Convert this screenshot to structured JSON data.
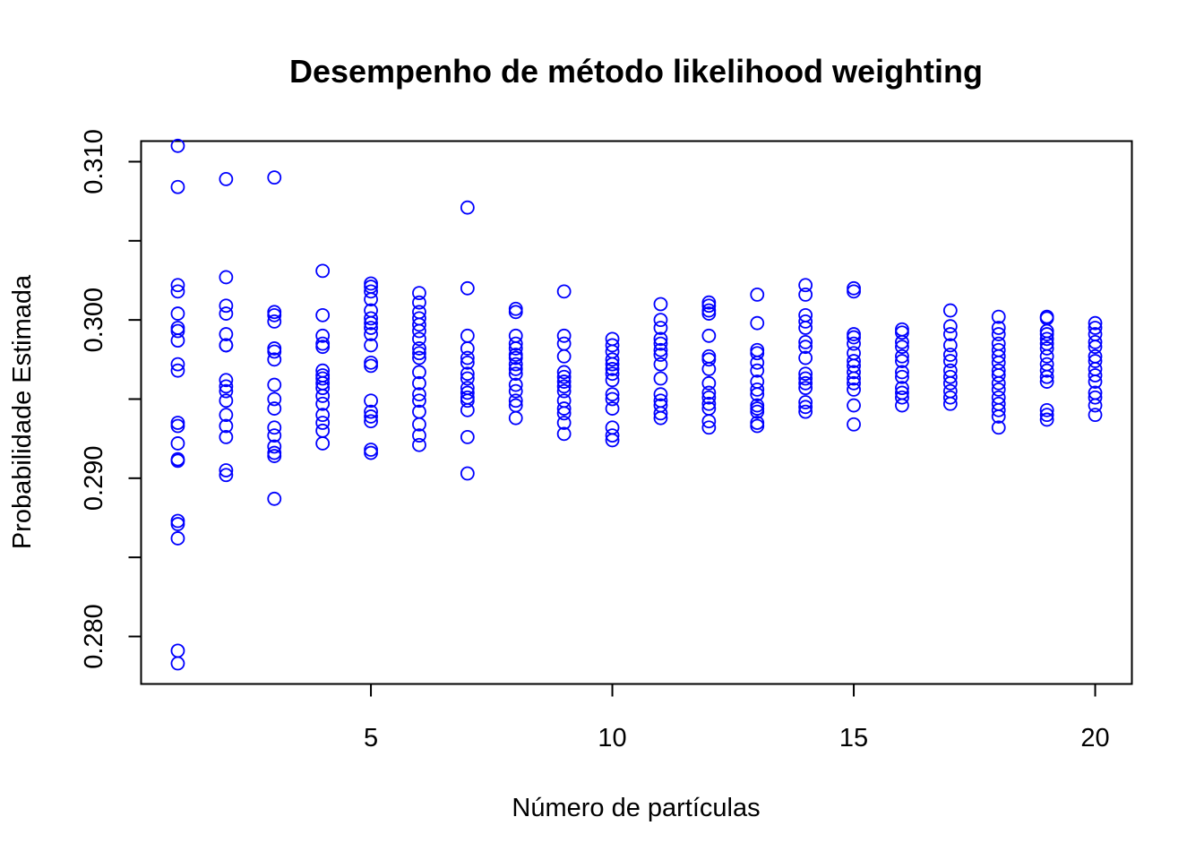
{
  "chart_data": {
    "type": "scatter",
    "title": "Desempenho de método likelihood weighting",
    "xlabel": "Número de partículas",
    "ylabel": "Probabilidade Estimada",
    "xlim": [
      0.24,
      20.76
    ],
    "ylim": [
      0.277,
      0.3113
    ],
    "x_ticks": [
      5,
      10,
      15,
      20
    ],
    "x_tick_labels": [
      "5",
      "10",
      "15",
      "20"
    ],
    "y_ticks": [
      0.28,
      0.285,
      0.29,
      0.295,
      0.3,
      0.305,
      0.31
    ],
    "y_tick_labels": [
      "0.280",
      "",
      "0.290",
      "",
      "0.300",
      "",
      "0.310"
    ],
    "grid": false,
    "legend": "none",
    "point_color": "#0000ff",
    "marker": "open-circle",
    "series": [
      {
        "points": [
          [
            1,
            0.311
          ],
          [
            1,
            0.3084
          ],
          [
            1,
            0.3022
          ],
          [
            1,
            0.3018
          ],
          [
            1,
            0.3004
          ],
          [
            1,
            0.2995
          ],
          [
            1,
            0.2993
          ],
          [
            1,
            0.2987
          ],
          [
            1,
            0.2972
          ],
          [
            1,
            0.2968
          ],
          [
            1,
            0.2935
          ],
          [
            1,
            0.2933
          ],
          [
            1,
            0.2922
          ],
          [
            1,
            0.2912
          ],
          [
            1,
            0.2911
          ],
          [
            1,
            0.2873
          ],
          [
            1,
            0.2871
          ],
          [
            1,
            0.2862
          ],
          [
            1,
            0.2791
          ],
          [
            1,
            0.2783
          ],
          [
            2,
            0.3089
          ],
          [
            2,
            0.3027
          ],
          [
            2,
            0.3009
          ],
          [
            2,
            0.3004
          ],
          [
            2,
            0.2991
          ],
          [
            2,
            0.2984
          ],
          [
            2,
            0.2984
          ],
          [
            2,
            0.2962
          ],
          [
            2,
            0.2958
          ],
          [
            2,
            0.2955
          ],
          [
            2,
            0.2949
          ],
          [
            2,
            0.294
          ],
          [
            2,
            0.2933
          ],
          [
            2,
            0.2926
          ],
          [
            2,
            0.2905
          ],
          [
            2,
            0.2902
          ],
          [
            3,
            0.309
          ],
          [
            3,
            0.3005
          ],
          [
            3,
            0.3003
          ],
          [
            3,
            0.2999
          ],
          [
            3,
            0.2982
          ],
          [
            3,
            0.298
          ],
          [
            3,
            0.2975
          ],
          [
            3,
            0.2959
          ],
          [
            3,
            0.295
          ],
          [
            3,
            0.2944
          ],
          [
            3,
            0.2932
          ],
          [
            3,
            0.2927
          ],
          [
            3,
            0.292
          ],
          [
            3,
            0.2916
          ],
          [
            3,
            0.2914
          ],
          [
            3,
            0.2887
          ],
          [
            4,
            0.3031
          ],
          [
            4,
            0.3003
          ],
          [
            4,
            0.299
          ],
          [
            4,
            0.2985
          ],
          [
            4,
            0.2983
          ],
          [
            4,
            0.2968
          ],
          [
            4,
            0.2965
          ],
          [
            4,
            0.2963
          ],
          [
            4,
            0.296
          ],
          [
            4,
            0.2957
          ],
          [
            4,
            0.2952
          ],
          [
            4,
            0.2947
          ],
          [
            4,
            0.294
          ],
          [
            4,
            0.2935
          ],
          [
            4,
            0.293
          ],
          [
            4,
            0.2922
          ],
          [
            5,
            0.3023
          ],
          [
            5,
            0.3021
          ],
          [
            5,
            0.3018
          ],
          [
            5,
            0.3013
          ],
          [
            5,
            0.3006
          ],
          [
            5,
            0.3001
          ],
          [
            5,
            0.2998
          ],
          [
            5,
            0.2995
          ],
          [
            5,
            0.2991
          ],
          [
            5,
            0.2984
          ],
          [
            5,
            0.2973
          ],
          [
            5,
            0.2971
          ],
          [
            5,
            0.2949
          ],
          [
            5,
            0.2942
          ],
          [
            5,
            0.2939
          ],
          [
            5,
            0.2936
          ],
          [
            5,
            0.2918
          ],
          [
            5,
            0.2916
          ],
          [
            6,
            0.3017
          ],
          [
            6,
            0.3011
          ],
          [
            6,
            0.3005
          ],
          [
            6,
            0.3001
          ],
          [
            6,
            0.2997
          ],
          [
            6,
            0.2993
          ],
          [
            6,
            0.2988
          ],
          [
            6,
            0.2982
          ],
          [
            6,
            0.2979
          ],
          [
            6,
            0.2976
          ],
          [
            6,
            0.2967
          ],
          [
            6,
            0.296
          ],
          [
            6,
            0.2953
          ],
          [
            6,
            0.2949
          ],
          [
            6,
            0.2942
          ],
          [
            6,
            0.2934
          ],
          [
            6,
            0.2927
          ],
          [
            6,
            0.2921
          ],
          [
            7,
            0.3071
          ],
          [
            7,
            0.302
          ],
          [
            7,
            0.299
          ],
          [
            7,
            0.2982
          ],
          [
            7,
            0.2976
          ],
          [
            7,
            0.2973
          ],
          [
            7,
            0.2966
          ],
          [
            7,
            0.2963
          ],
          [
            7,
            0.2957
          ],
          [
            7,
            0.2954
          ],
          [
            7,
            0.2951
          ],
          [
            7,
            0.2949
          ],
          [
            7,
            0.2943
          ],
          [
            7,
            0.2926
          ],
          [
            7,
            0.2903
          ],
          [
            8,
            0.3007
          ],
          [
            8,
            0.3005
          ],
          [
            8,
            0.299
          ],
          [
            8,
            0.2985
          ],
          [
            8,
            0.2982
          ],
          [
            8,
            0.2978
          ],
          [
            8,
            0.2976
          ],
          [
            8,
            0.2972
          ],
          [
            8,
            0.2969
          ],
          [
            8,
            0.2966
          ],
          [
            8,
            0.2959
          ],
          [
            8,
            0.2955
          ],
          [
            8,
            0.2949
          ],
          [
            8,
            0.2946
          ],
          [
            8,
            0.2938
          ],
          [
            9,
            0.3018
          ],
          [
            9,
            0.299
          ],
          [
            9,
            0.2985
          ],
          [
            9,
            0.2977
          ],
          [
            9,
            0.2967
          ],
          [
            9,
            0.2964
          ],
          [
            9,
            0.2961
          ],
          [
            9,
            0.2958
          ],
          [
            9,
            0.2955
          ],
          [
            9,
            0.2949
          ],
          [
            9,
            0.2944
          ],
          [
            9,
            0.2941
          ],
          [
            9,
            0.2935
          ],
          [
            9,
            0.2928
          ],
          [
            10,
            0.2988
          ],
          [
            10,
            0.2984
          ],
          [
            10,
            0.298
          ],
          [
            10,
            0.2975
          ],
          [
            10,
            0.2972
          ],
          [
            10,
            0.2969
          ],
          [
            10,
            0.2966
          ],
          [
            10,
            0.2962
          ],
          [
            10,
            0.2953
          ],
          [
            10,
            0.295
          ],
          [
            10,
            0.2944
          ],
          [
            10,
            0.2932
          ],
          [
            10,
            0.2927
          ],
          [
            10,
            0.2924
          ],
          [
            11,
            0.301
          ],
          [
            11,
            0.3
          ],
          [
            11,
            0.2995
          ],
          [
            11,
            0.2988
          ],
          [
            11,
            0.2985
          ],
          [
            11,
            0.2981
          ],
          [
            11,
            0.2978
          ],
          [
            11,
            0.2972
          ],
          [
            11,
            0.2963
          ],
          [
            11,
            0.2953
          ],
          [
            11,
            0.2949
          ],
          [
            11,
            0.2946
          ],
          [
            11,
            0.2941
          ],
          [
            11,
            0.2938
          ],
          [
            12,
            0.3011
          ],
          [
            12,
            0.3009
          ],
          [
            12,
            0.3006
          ],
          [
            12,
            0.3004
          ],
          [
            12,
            0.299
          ],
          [
            12,
            0.2977
          ],
          [
            12,
            0.2975
          ],
          [
            12,
            0.2969
          ],
          [
            12,
            0.296
          ],
          [
            12,
            0.2954
          ],
          [
            12,
            0.2951
          ],
          [
            12,
            0.2947
          ],
          [
            12,
            0.2944
          ],
          [
            12,
            0.2936
          ],
          [
            12,
            0.2932
          ],
          [
            13,
            0.3016
          ],
          [
            13,
            0.2998
          ],
          [
            13,
            0.2981
          ],
          [
            13,
            0.2979
          ],
          [
            13,
            0.2973
          ],
          [
            13,
            0.2968
          ],
          [
            13,
            0.2961
          ],
          [
            13,
            0.2956
          ],
          [
            13,
            0.2953
          ],
          [
            13,
            0.2946
          ],
          [
            13,
            0.2944
          ],
          [
            13,
            0.2942
          ],
          [
            13,
            0.2935
          ],
          [
            13,
            0.2933
          ],
          [
            14,
            0.3022
          ],
          [
            14,
            0.3016
          ],
          [
            14,
            0.3003
          ],
          [
            14,
            0.2999
          ],
          [
            14,
            0.2995
          ],
          [
            14,
            0.2986
          ],
          [
            14,
            0.2983
          ],
          [
            14,
            0.2976
          ],
          [
            14,
            0.2966
          ],
          [
            14,
            0.2963
          ],
          [
            14,
            0.296
          ],
          [
            14,
            0.2957
          ],
          [
            14,
            0.2948
          ],
          [
            14,
            0.2945
          ],
          [
            14,
            0.2942
          ],
          [
            15,
            0.302
          ],
          [
            15,
            0.3018
          ],
          [
            15,
            0.2991
          ],
          [
            15,
            0.2989
          ],
          [
            15,
            0.2985
          ],
          [
            15,
            0.2979
          ],
          [
            15,
            0.2974
          ],
          [
            15,
            0.2971
          ],
          [
            15,
            0.2967
          ],
          [
            15,
            0.2963
          ],
          [
            15,
            0.296
          ],
          [
            15,
            0.2956
          ],
          [
            15,
            0.2946
          ],
          [
            15,
            0.2934
          ],
          [
            16,
            0.2994
          ],
          [
            16,
            0.2992
          ],
          [
            16,
            0.2986
          ],
          [
            16,
            0.2983
          ],
          [
            16,
            0.2977
          ],
          [
            16,
            0.2974
          ],
          [
            16,
            0.2967
          ],
          [
            16,
            0.2964
          ],
          [
            16,
            0.2957
          ],
          [
            16,
            0.2954
          ],
          [
            16,
            0.2951
          ],
          [
            16,
            0.2946
          ],
          [
            17,
            0.3006
          ],
          [
            17,
            0.2996
          ],
          [
            17,
            0.2991
          ],
          [
            17,
            0.2984
          ],
          [
            17,
            0.2978
          ],
          [
            17,
            0.2974
          ],
          [
            17,
            0.2968
          ],
          [
            17,
            0.2964
          ],
          [
            17,
            0.296
          ],
          [
            17,
            0.2955
          ],
          [
            17,
            0.2951
          ],
          [
            17,
            0.2947
          ],
          [
            18,
            0.3002
          ],
          [
            18,
            0.2995
          ],
          [
            18,
            0.2991
          ],
          [
            18,
            0.2985
          ],
          [
            18,
            0.2981
          ],
          [
            18,
            0.2977
          ],
          [
            18,
            0.2973
          ],
          [
            18,
            0.2968
          ],
          [
            18,
            0.2965
          ],
          [
            18,
            0.296
          ],
          [
            18,
            0.2956
          ],
          [
            18,
            0.2951
          ],
          [
            18,
            0.2947
          ],
          [
            18,
            0.2943
          ],
          [
            18,
            0.2939
          ],
          [
            18,
            0.2932
          ],
          [
            19,
            0.3002
          ],
          [
            19,
            0.3001
          ],
          [
            19,
            0.2993
          ],
          [
            19,
            0.2991
          ],
          [
            19,
            0.2988
          ],
          [
            19,
            0.2985
          ],
          [
            19,
            0.2982
          ],
          [
            19,
            0.2977
          ],
          [
            19,
            0.2972
          ],
          [
            19,
            0.2968
          ],
          [
            19,
            0.2964
          ],
          [
            19,
            0.2961
          ],
          [
            19,
            0.2943
          ],
          [
            19,
            0.294
          ],
          [
            19,
            0.2937
          ],
          [
            20,
            0.2998
          ],
          [
            20,
            0.2995
          ],
          [
            20,
            0.2991
          ],
          [
            20,
            0.2986
          ],
          [
            20,
            0.2983
          ],
          [
            20,
            0.2977
          ],
          [
            20,
            0.2974
          ],
          [
            20,
            0.2969
          ],
          [
            20,
            0.2965
          ],
          [
            20,
            0.2961
          ],
          [
            20,
            0.2954
          ],
          [
            20,
            0.2951
          ],
          [
            20,
            0.2946
          ],
          [
            20,
            0.294
          ]
        ]
      }
    ]
  }
}
